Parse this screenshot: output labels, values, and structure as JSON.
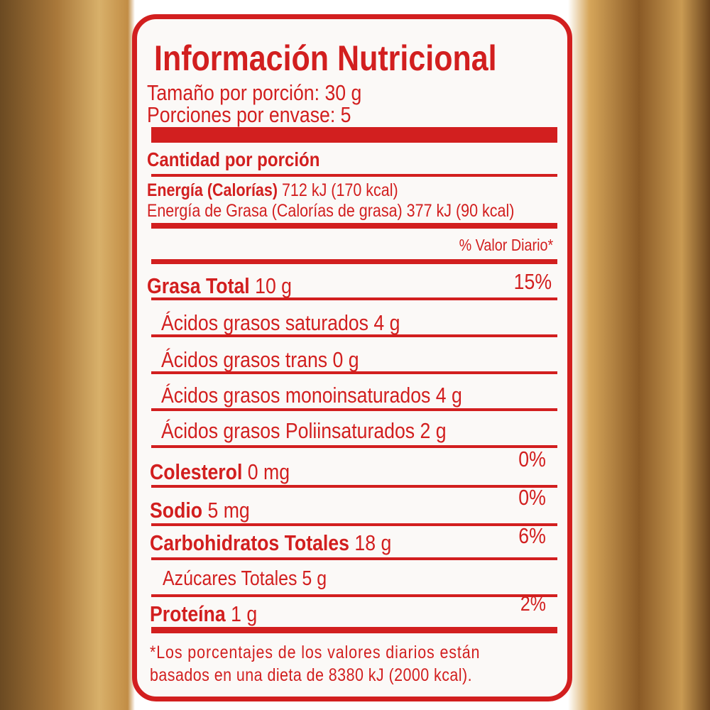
{
  "title": "Información Nutricional",
  "serving_size": "Tamaño por porción: 30 g",
  "servings_per_container": "Porciones por envase: 5",
  "amount_per_serving": "Cantidad por porción",
  "energy": {
    "label": "Energía (Calorías)",
    "value": "712 kJ (170 kcal)"
  },
  "energy_fat": "Energía de Grasa (Calorías de grasa) 377 kJ (90 kcal)",
  "daily_value_header": "% Valor Diario*",
  "nutrients": [
    {
      "label": "Grasa Total",
      "amount": "10 g",
      "dv": "15%"
    },
    {
      "label": "Ácidos grasos saturados 4 g"
    },
    {
      "label": "Ácidos grasos trans 0 g"
    },
    {
      "label": "Ácidos grasos monoinsaturados 4 g"
    },
    {
      "label": "Ácidos grasos Poliinsaturados 2 g"
    },
    {
      "label": "Colesterol",
      "amount": "0 mg",
      "dv": "0%"
    },
    {
      "label": "Sodio",
      "amount": "5 mg",
      "dv": "0%"
    },
    {
      "label": "Carbohidratos Totales",
      "amount": "18 g",
      "dv": "6%"
    },
    {
      "label": "Azúcares Totales 5 g"
    },
    {
      "label": "Proteína",
      "amount": "1 g",
      "dv": "2%"
    }
  ],
  "footnote": [
    "*Los porcentajes de los valores diarios están",
    "basados en una dieta de 8380 kJ (2000 kcal)."
  ],
  "colors": {
    "label_red": "#d21f1f",
    "background": "#fbf9f7"
  }
}
